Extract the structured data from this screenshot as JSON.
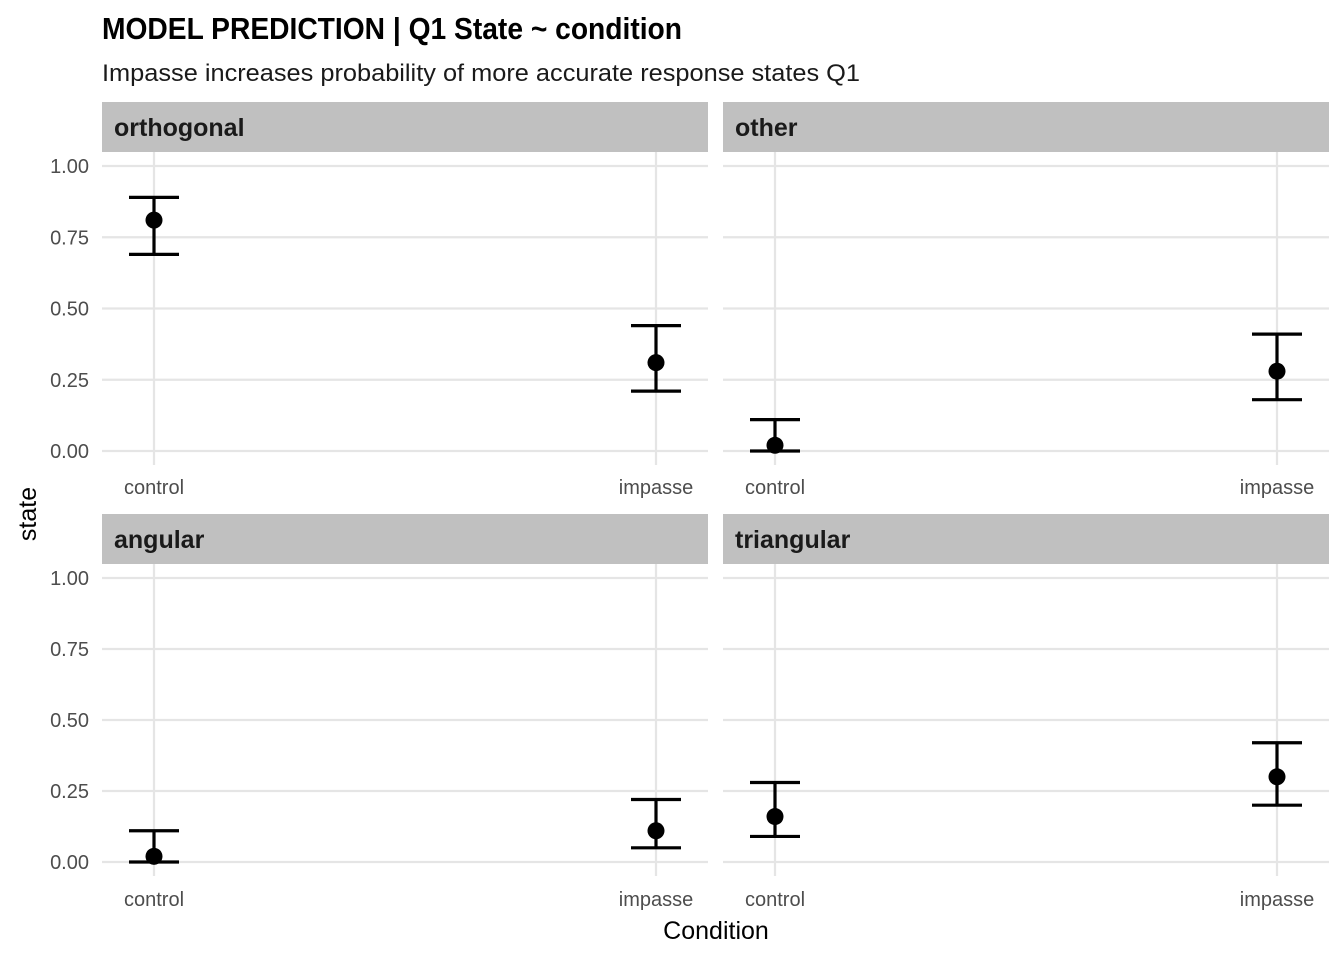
{
  "chart_data": {
    "type": "scatter",
    "title": "MODEL PREDICTION  | Q1 State ~ condition",
    "subtitle": "Impasse increases probability of more accurate response states Q1",
    "xlabel": "Condition",
    "ylabel": "state",
    "categories": [
      "control",
      "impasse"
    ],
    "ylim": [
      0,
      1.05
    ],
    "yticks": [
      "0.00",
      "0.25",
      "0.50",
      "0.75",
      "1.00"
    ],
    "grid": true,
    "legend": "none",
    "facets": [
      {
        "label": "orthogonal",
        "points": [
          {
            "x": "control",
            "y": 0.81,
            "low": 0.69,
            "high": 0.89
          },
          {
            "x": "impasse",
            "y": 0.31,
            "low": 0.21,
            "high": 0.44
          }
        ]
      },
      {
        "label": "other",
        "points": [
          {
            "x": "control",
            "y": 0.02,
            "low": 0.0,
            "high": 0.11
          },
          {
            "x": "impasse",
            "y": 0.28,
            "low": 0.18,
            "high": 0.41
          }
        ]
      },
      {
        "label": "angular",
        "points": [
          {
            "x": "control",
            "y": 0.02,
            "low": 0.0,
            "high": 0.11
          },
          {
            "x": "impasse",
            "y": 0.11,
            "low": 0.05,
            "high": 0.22
          }
        ]
      },
      {
        "label": "triangular",
        "points": [
          {
            "x": "control",
            "y": 0.16,
            "low": 0.09,
            "high": 0.28
          },
          {
            "x": "impasse",
            "y": 0.3,
            "low": 0.2,
            "high": 0.42
          }
        ]
      }
    ]
  },
  "colors": {
    "strip_background": "#c0c0c0",
    "grid": "#e5e5e5",
    "point": "#000000"
  }
}
